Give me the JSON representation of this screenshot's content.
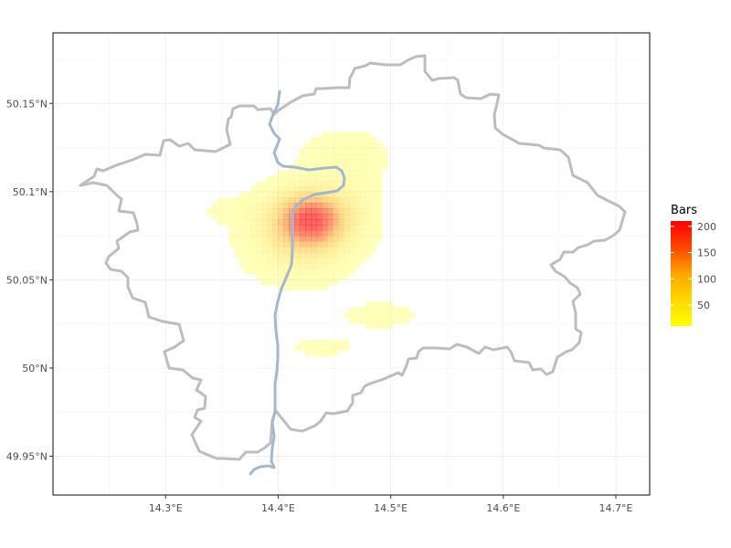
{
  "chart_data": {
    "type": "map",
    "x_axis": {
      "ticks": [
        {
          "value": 14.3,
          "label": "14.3°E"
        },
        {
          "value": 14.4,
          "label": "14.4°E"
        },
        {
          "value": 14.5,
          "label": "14.5°E"
        },
        {
          "value": 14.6,
          "label": "14.6°E"
        },
        {
          "value": 14.7,
          "label": "14.7°E"
        }
      ],
      "range": [
        14.2,
        14.73
      ]
    },
    "y_axis": {
      "ticks": [
        {
          "value": 49.95,
          "label": "49.95°N"
        },
        {
          "value": 50.0,
          "label": "50°N"
        },
        {
          "value": 50.05,
          "label": "50.05°N"
        },
        {
          "value": 50.1,
          "label": "50.1°N"
        },
        {
          "value": 50.15,
          "label": "50.15°N"
        }
      ],
      "range": [
        49.928,
        50.19
      ]
    },
    "grid": true,
    "legend": {
      "title": "Bars",
      "placement": "right",
      "ticks": [
        50,
        100,
        150,
        200
      ],
      "range": [
        10,
        210
      ],
      "colors": [
        "#ffff00",
        "#ffd700",
        "#ffa500",
        "#ff4500",
        "#ff0000"
      ]
    },
    "layers": {
      "boundary_color": "#bdbdbd",
      "river_color": "#a3b8cf",
      "density_max": 210
    },
    "density_hotspots": [
      {
        "lon": 14.43,
        "lat": 50.085,
        "peak": 170,
        "sx": 0.022,
        "sy": 0.011
      },
      {
        "lon": 14.42,
        "lat": 50.075,
        "peak": 70,
        "sx": 0.03,
        "sy": 0.015
      },
      {
        "lon": 14.46,
        "lat": 50.12,
        "peak": 25,
        "sx": 0.025,
        "sy": 0.01
      },
      {
        "lon": 14.47,
        "lat": 50.095,
        "peak": 20,
        "sx": 0.012,
        "sy": 0.012
      },
      {
        "lon": 14.36,
        "lat": 50.09,
        "peak": 15,
        "sx": 0.018,
        "sy": 0.005
      },
      {
        "lon": 14.49,
        "lat": 50.03,
        "peak": 20,
        "sx": 0.022,
        "sy": 0.005
      },
      {
        "lon": 14.44,
        "lat": 50.012,
        "peak": 15,
        "sx": 0.022,
        "sy": 0.004
      }
    ]
  }
}
